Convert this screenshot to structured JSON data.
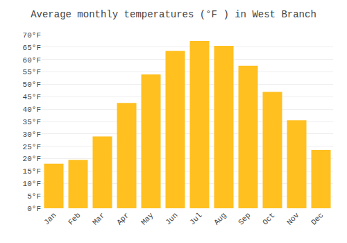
{
  "chart_data": {
    "type": "bar",
    "title": "Average monthly temperatures (°F ) in West Branch",
    "categories": [
      "Jan",
      "Feb",
      "Mar",
      "Apr",
      "May",
      "Jun",
      "Jul",
      "Aug",
      "Sep",
      "Oct",
      "Nov",
      "Dec"
    ],
    "values": [
      18,
      19.5,
      29,
      42.5,
      54,
      63.5,
      67.5,
      65.5,
      57.5,
      47,
      35.5,
      23.5
    ],
    "color": "#FFC020",
    "ylim": [
      0,
      70
    ],
    "yticks": [
      {
        "value": 0,
        "label": "0°F"
      },
      {
        "value": 5,
        "label": "5°F"
      },
      {
        "value": 10,
        "label": "10°F"
      },
      {
        "value": 15,
        "label": "15°F"
      },
      {
        "value": 20,
        "label": "20°F"
      },
      {
        "value": 25,
        "label": "25°F"
      },
      {
        "value": 30,
        "label": "30°F"
      },
      {
        "value": 35,
        "label": "35°F"
      },
      {
        "value": 40,
        "label": "40°F"
      },
      {
        "value": 45,
        "label": "45°F"
      },
      {
        "value": 50,
        "label": "50°F"
      },
      {
        "value": 55,
        "label": "55°F"
      },
      {
        "value": 60,
        "label": "60°F"
      },
      {
        "value": 65,
        "label": "65°F"
      },
      {
        "value": 70,
        "label": "70°F"
      }
    ],
    "grid": true
  }
}
